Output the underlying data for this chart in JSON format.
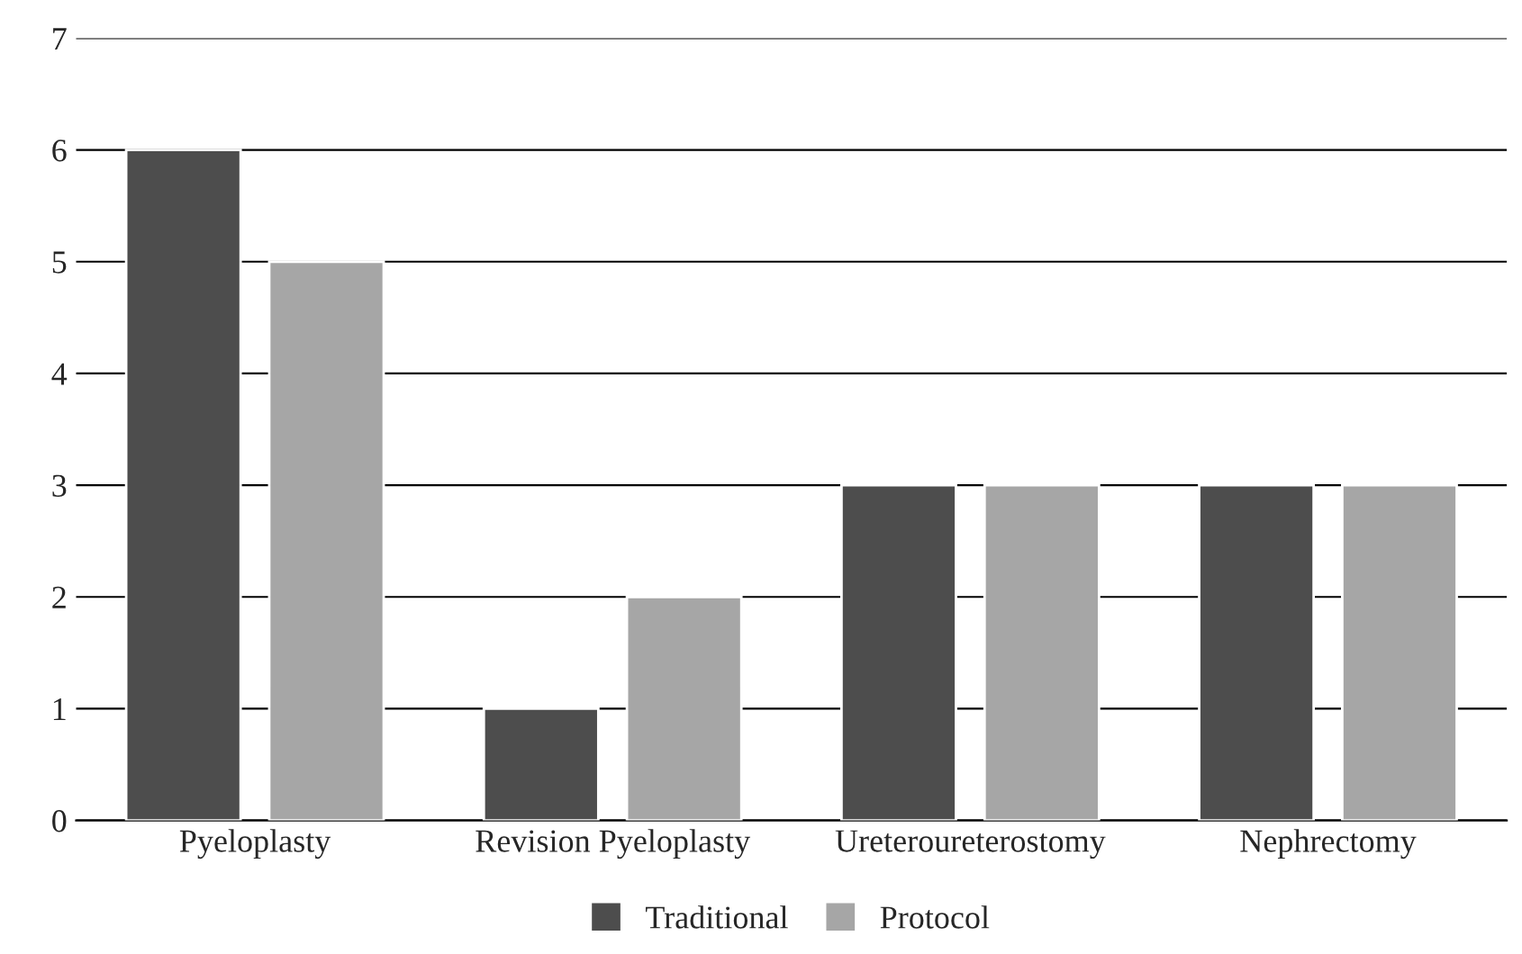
{
  "chart_data": {
    "type": "bar",
    "categories": [
      "Pyeloplasty",
      "Revision Pyeloplasty",
      "Ureteroureterostomy",
      "Nephrectomy"
    ],
    "series": [
      {
        "name": "Traditional",
        "color": "#4d4d4d",
        "values": [
          6,
          1,
          3,
          3
        ]
      },
      {
        "name": "Protocol",
        "color": "#a6a6a6",
        "values": [
          5,
          2,
          3,
          3
        ]
      }
    ],
    "ylim": [
      0,
      7
    ],
    "yticks": [
      0,
      1,
      2,
      3,
      4,
      5,
      6,
      7
    ],
    "grid": "y",
    "legend": "bottom"
  }
}
